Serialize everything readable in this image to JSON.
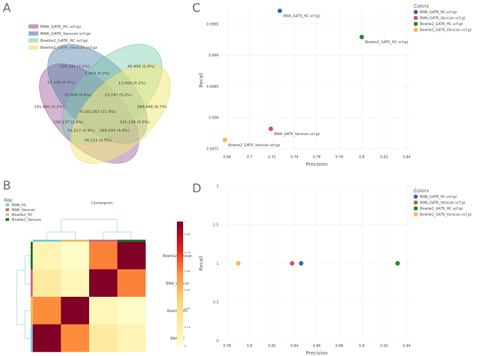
{
  "panels": {
    "a": "A",
    "b": "B",
    "c": "C",
    "d": "D"
  },
  "venn": {
    "legend": [
      "BWA_GATK_HC.vcf.gz",
      "BWA_GATK_Varscan.vcf.gz",
      "Bowtie2_GATK_HC.vcf.gz",
      "Bowtie2_GATK_Varscan.vcf.gz"
    ],
    "colors": [
      "#9a5a98",
      "#4f7fa6",
      "#7fcfae",
      "#f3ea7a"
    ],
    "regions": [
      "126,191 (2.2%)",
      "45,456 (0.8%)",
      "1,954 (0.0%)",
      "27,108 (0.5%)",
      "11,560 (0.2%)",
      "25,000 (0.4%)",
      "13,747 (0.2%)",
      "181,860 (3.2%)",
      "4,102,052 (71.4%)",
      "384,846 (6.7%)",
      "150,137 (2.6%)",
      "315,138 (5.5%)",
      "51,217 (0.9%)",
      "283,039 (4.9%)",
      "28,221 (0.5%)"
    ]
  },
  "chart_data": [
    {
      "type": "scatter",
      "panel": "C",
      "xlabel": "Precision",
      "ylabel": "Recall",
      "xlim": [
        0.675,
        0.845
      ],
      "ylim": [
        0.99745,
        0.99975
      ],
      "xticks": [
        "0.68",
        "0.7",
        "0.72",
        "0.74",
        "0.76",
        "0.78",
        "0.8",
        "0.82",
        "0.84"
      ],
      "xtick_values": [
        0.68,
        0.7,
        0.72,
        0.74,
        0.76,
        0.78,
        0.8,
        0.82,
        0.84
      ],
      "yticks": [
        "0.9975",
        "0.998",
        "0.9985",
        "0.999",
        "0.9995"
      ],
      "ytick_values": [
        0.9975,
        0.998,
        0.9985,
        0.999,
        0.9995
      ],
      "legend_title": "Colors",
      "series": [
        {
          "name": "BWA_GATK_HC.vcf.gz",
          "x": 0.727,
          "y": 0.99971,
          "color": "#3a5fc4",
          "label": "BWA_GATK_HC.vcf.gz"
        },
        {
          "name": "BWA_GATK_Varscan.vcf.gz",
          "x": 0.719,
          "y": 0.99782,
          "color": "#d9534f",
          "label": "BWA_GATK_Varscan.vcf.gz"
        },
        {
          "name": "Bowtie2_GATK_HC.vcf.gz",
          "x": 0.8,
          "y": 0.99929,
          "color": "#1e8a2e",
          "label": "Bowtie2_GATK_HC.vcf.gz"
        },
        {
          "name": "Bowtie2_GATK_Varscan.vcf.gz",
          "x": 0.678,
          "y": 0.99764,
          "color": "#f5b942",
          "label": "Bowtie2_GATK_Varscan.vcf.gz"
        }
      ]
    },
    {
      "type": "scatter",
      "panel": "D",
      "xlabel": "Precision",
      "ylabel": "Recall",
      "xlim": [
        0.775,
        0.945
      ],
      "ylim": [
        0,
        2
      ],
      "xticks": [
        "0.78",
        "0.8",
        "0.82",
        "0.84",
        "0.86",
        "0.88",
        "0.9",
        "0.92",
        "0.94"
      ],
      "xtick_values": [
        0.78,
        0.8,
        0.82,
        0.84,
        0.86,
        0.88,
        0.9,
        0.92,
        0.94
      ],
      "yticks": [
        "0",
        "0.5",
        "1",
        "1.5",
        "2"
      ],
      "ytick_values": [
        0,
        0.5,
        1,
        1.5,
        2
      ],
      "legend_title": "Colors",
      "series": [
        {
          "name": "BWA_GATK_HC.vcf.gz",
          "x": 0.846,
          "y": 1,
          "color": "#3a5fc4"
        },
        {
          "name": "BWA_GATK_Varscan.vcf.gz",
          "x": 0.838,
          "y": 1,
          "color": "#d9534f"
        },
        {
          "name": "Bowtie2_GATK_HC.vcf.gz",
          "x": 0.932,
          "y": 1,
          "color": "#1e8a2e"
        },
        {
          "name": "Bowtie2_GATK_Varscan.vcf.gz",
          "x": 0.79,
          "y": 1,
          "color": "#f5b942"
        }
      ]
    },
    {
      "type": "heatmap",
      "panel": "B",
      "title": "Clustergram",
      "legend_title": "File",
      "legend": [
        {
          "name": "BWA_HC",
          "color": "#7ec8e3"
        },
        {
          "name": "BWA_Varscan",
          "color": "#d16b7f"
        },
        {
          "name": "Bowtie2_HC",
          "color": "#e3c36b"
        },
        {
          "name": "Bowtie2_Varscan",
          "color": "#1e7a2e"
        }
      ],
      "columns": [
        "BWA_HC",
        "Bowtie2_HC",
        "BWA_Varscan",
        "Bowtie2_Varscan"
      ],
      "rows": [
        "Bowtie2_Varscan",
        "BWA_Varscan",
        "Bowtie2_HC",
        "BWA_HC"
      ],
      "values": [
        [
          0.1,
          0.02,
          0.62,
          1.0
        ],
        [
          0.18,
          0.08,
          1.0,
          0.62
        ],
        [
          0.6,
          1.0,
          0.08,
          0.02
        ],
        [
          1.0,
          0.6,
          0.18,
          0.1
        ]
      ],
      "colorbar_ticks": [
        "0",
        "0.15",
        "0.30",
        "0.45",
        "0.60",
        "0.75",
        "0.90",
        "1"
      ],
      "colorbar_values": [
        0,
        0.15,
        0.3,
        0.45,
        0.6,
        0.75,
        0.9,
        1.0
      ]
    }
  ]
}
